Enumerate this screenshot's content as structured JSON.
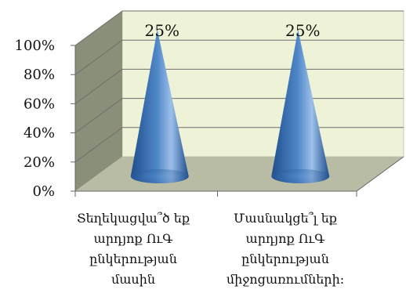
{
  "chart_data": {
    "type": "bar",
    "style": "3d-cone",
    "categories": [
      [
        "Տեղեկացվա՞ծ եք",
        "արդյոք ՈւԳ",
        "ընկերության",
        "մասին"
      ],
      [
        "Մասնակցե՞լ եք",
        "արդյոք ՈւԳ",
        "ընկերության",
        "միջոցառումների:"
      ]
    ],
    "values": [
      25,
      25
    ],
    "data_labels": [
      "25%",
      "25%"
    ],
    "y_tick_labels": [
      "0%",
      "20%",
      "40%",
      "60%",
      "80%",
      "100%"
    ],
    "ylim": [
      0,
      100
    ],
    "grid": true,
    "legend": "none",
    "colors": {
      "cone_dark": "#1f4e8c",
      "cone_mid": "#4f86c8",
      "cone_light": "#9cc0ea",
      "back_wall": "#eef2d6",
      "side_wall": "#8a8f7a",
      "floor": "#b8bca5",
      "gridline": "#6e6e6e"
    }
  }
}
